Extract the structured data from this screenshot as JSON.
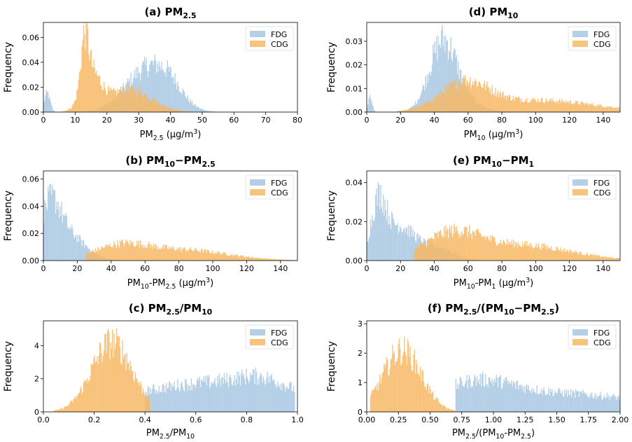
{
  "colors": {
    "FDG": "#a7c7e2",
    "CDG": "#f7b864",
    "axis": "#000000"
  },
  "chart_data": [
    {
      "panel": "a",
      "type": "histogram",
      "title": "(a) PM",
      "title_sub": "2.5",
      "xlabel": "PM",
      "xlabel_sub": "2.5",
      "xlabel_unit": " (μg/m",
      "xlabel_sup": "3",
      "xlabel_end": ")",
      "ylabel": "Frequency",
      "xlim": [
        0,
        80
      ],
      "ylim": [
        0,
        0.072
      ],
      "xticks": [
        "0",
        "10",
        "20",
        "30",
        "40",
        "50",
        "60",
        "70",
        "80"
      ],
      "xtick_values": [
        0,
        10,
        20,
        30,
        40,
        50,
        60,
        70,
        80
      ],
      "yticks": [
        "0.00",
        "0.02",
        "0.04",
        "0.06"
      ],
      "ytick_values": [
        0,
        0.02,
        0.04,
        0.06
      ],
      "legend": [
        "FDG",
        "CDG"
      ],
      "legend_position": "top-right",
      "series": [
        {
          "name": "FDG",
          "components": [
            {
              "mu": 33,
              "sigma": 7,
              "peak": 0.035
            },
            {
              "mu": 40,
              "sigma": 4,
              "peak": 0.01
            },
            {
              "mu": 1.2,
              "sigma": 0.9,
              "peak": 0.015
            }
          ],
          "range": [
            0,
            70
          ]
        },
        {
          "name": "CDG",
          "components": [
            {
              "mu": 13,
              "sigma": 1.2,
              "peak": 0.04
            },
            {
              "mu": 15,
              "sigma": 3,
              "peak": 0.028
            },
            {
              "mu": 27,
              "sigma": 7,
              "peak": 0.018
            }
          ],
          "range": [
            6,
            50
          ]
        }
      ]
    },
    {
      "panel": "d",
      "type": "histogram",
      "title": "(d) PM",
      "title_sub": "10",
      "xlabel": "PM",
      "xlabel_sub": "10",
      "xlabel_unit": " (μg/m",
      "xlabel_sup": "3",
      "xlabel_end": ")",
      "ylabel": "Frequency",
      "xlim": [
        0,
        150
      ],
      "ylim": [
        0,
        0.038
      ],
      "xticks": [
        "0",
        "20",
        "40",
        "60",
        "80",
        "100",
        "120",
        "140"
      ],
      "xtick_values": [
        0,
        20,
        40,
        60,
        80,
        100,
        120,
        140
      ],
      "yticks": [
        "0.00",
        "0.01",
        "0.02",
        "0.03"
      ],
      "ytick_values": [
        0,
        0.01,
        0.02,
        0.03
      ],
      "legend": [
        "FDG",
        "CDG"
      ],
      "legend_position": "top-right",
      "series": [
        {
          "name": "FDG",
          "components": [
            {
              "mu": 45,
              "sigma": 8,
              "peak": 0.029
            },
            {
              "mu": 58,
              "sigma": 10,
              "peak": 0.004
            },
            {
              "mu": 2,
              "sigma": 1.2,
              "peak": 0.006
            }
          ],
          "range": [
            0,
            100
          ]
        },
        {
          "name": "CDG",
          "components": [
            {
              "mu": 58,
              "sigma": 14,
              "peak": 0.011
            },
            {
              "mu": 100,
              "sigma": 35,
              "peak": 0.005
            }
          ],
          "range": [
            18,
            150
          ]
        }
      ]
    },
    {
      "panel": "b",
      "type": "histogram",
      "title": "(b) PM",
      "title_sub": "10",
      "title_mid": "−PM",
      "title_sub2": "2.5",
      "xlabel": "PM",
      "xlabel_sub": "10",
      "xlabel_mid": "-PM",
      "xlabel_sub2": "2.5",
      "xlabel_unit": " (μg/m",
      "xlabel_sup": "3",
      "xlabel_end": ")",
      "ylabel": "Frequency",
      "xlim": [
        0,
        150
      ],
      "ylim": [
        0,
        0.066
      ],
      "xticks": [
        "0",
        "20",
        "40",
        "60",
        "80",
        "100",
        "120",
        "140"
      ],
      "xtick_values": [
        0,
        20,
        40,
        60,
        80,
        100,
        120,
        140
      ],
      "yticks": [
        "0.00",
        "0.02",
        "0.04",
        "0.06"
      ],
      "ytick_values": [
        0,
        0.02,
        0.04,
        0.06
      ],
      "legend": [
        "FDG",
        "CDG"
      ],
      "legend_position": "top-right",
      "series": [
        {
          "name": "FDG",
          "components": [
            {
              "mu": 4,
              "sigma": 6,
              "peak": 0.036
            },
            {
              "mu": 15,
              "sigma": 10,
              "peak": 0.018
            }
          ],
          "range": [
            0,
            45
          ]
        },
        {
          "name": "CDG",
          "components": [
            {
              "mu": 45,
              "sigma": 15,
              "peak": 0.009
            },
            {
              "mu": 80,
              "sigma": 28,
              "peak": 0.008
            }
          ],
          "range": [
            25,
            150
          ]
        }
      ]
    },
    {
      "panel": "e",
      "type": "histogram",
      "title": "(e) PM",
      "title_sub": "10",
      "title_mid": "−PM",
      "title_sub2": "1",
      "xlabel": "PM",
      "xlabel_sub": "10",
      "xlabel_mid": "-PM",
      "xlabel_sub2": "1",
      "xlabel_unit": " (μg/m",
      "xlabel_sup": "3",
      "xlabel_end": ")",
      "ylabel": "Frequency",
      "xlim": [
        0,
        150
      ],
      "ylim": [
        0,
        0.046
      ],
      "xticks": [
        "0",
        "20",
        "40",
        "60",
        "80",
        "100",
        "120",
        "140"
      ],
      "xtick_values": [
        0,
        20,
        40,
        60,
        80,
        100,
        120,
        140
      ],
      "yticks": [
        "0.00",
        "0.02",
        "0.04"
      ],
      "ytick_values": [
        0,
        0.02,
        0.04
      ],
      "legend": [
        "FDG",
        "CDG"
      ],
      "legend_position": "top-right",
      "series": [
        {
          "name": "FDG",
          "components": [
            {
              "mu": 7,
              "sigma": 4,
              "peak": 0.022
            },
            {
              "mu": 18,
              "sigma": 12,
              "peak": 0.018
            },
            {
              "mu": 45,
              "sigma": 8,
              "peak": 0.005
            }
          ],
          "range": [
            0,
            70
          ]
        },
        {
          "name": "CDG",
          "components": [
            {
              "mu": 50,
              "sigma": 16,
              "peak": 0.012
            },
            {
              "mu": 90,
              "sigma": 30,
              "peak": 0.008
            }
          ],
          "range": [
            28,
            150
          ]
        }
      ]
    },
    {
      "panel": "c",
      "type": "histogram",
      "title": "(c) PM",
      "title_sub": "2.5",
      "title_mid": "/PM",
      "title_sub2": "10",
      "xlabel": "PM",
      "xlabel_sub": "2.5",
      "xlabel_mid": "/PM",
      "xlabel_sub2": "10",
      "ylabel": "Frequency",
      "xlim": [
        0,
        1
      ],
      "ylim": [
        0,
        5.5
      ],
      "xticks": [
        "0.0",
        "0.2",
        "0.4",
        "0.6",
        "0.8",
        "1.0"
      ],
      "xtick_values": [
        0,
        0.2,
        0.4,
        0.6,
        0.8,
        1.0
      ],
      "yticks": [
        "0",
        "2",
        "4"
      ],
      "ytick_values": [
        0,
        2,
        4
      ],
      "legend": [
        "FDG",
        "CDG"
      ],
      "legend_position": "top-right",
      "series": [
        {
          "name": "FDG",
          "components": [
            {
              "mu": 0.7,
              "sigma": 0.35,
              "peak": 1.8
            },
            {
              "mu": 0.85,
              "sigma": 0.08,
              "peak": 0.5
            }
          ],
          "range": [
            0.4,
            0.99
          ]
        },
        {
          "name": "CDG",
          "components": [
            {
              "mu": 0.27,
              "sigma": 0.08,
              "peak": 4.2
            }
          ],
          "range": [
            0.04,
            0.42
          ]
        }
      ]
    },
    {
      "panel": "f",
      "type": "histogram",
      "title": "(f) PM",
      "title_sub": "2.5",
      "title_mid": "/(PM",
      "title_sub2": "10",
      "title_mid2": "−PM",
      "title_sub3": "2.5",
      "title_end": ")",
      "xlabel": "PM",
      "xlabel_sub": "2.5",
      "xlabel_mid": "/(PM",
      "xlabel_sub2": "10",
      "xlabel_mid2": "-PM",
      "xlabel_sub3": "2.5",
      "xlabel_end": ")",
      "ylabel": "Frequency",
      "xlim": [
        0,
        2
      ],
      "ylim": [
        0,
        3.1
      ],
      "xticks": [
        "0.00",
        "0.25",
        "0.50",
        "0.75",
        "1.00",
        "1.25",
        "1.50",
        "1.75",
        "2.00"
      ],
      "xtick_values": [
        0,
        0.25,
        0.5,
        0.75,
        1,
        1.25,
        1.5,
        1.75,
        2
      ],
      "yticks": [
        "0",
        "1",
        "2",
        "3"
      ],
      "ytick_values": [
        0,
        1,
        2,
        3
      ],
      "legend": [
        "FDG",
        "CDG"
      ],
      "legend_position": "top-right",
      "series": [
        {
          "name": "FDG",
          "components": [
            {
              "mu": 0.85,
              "sigma": 0.3,
              "peak": 0.8
            },
            {
              "mu": 1.6,
              "sigma": 0.6,
              "peak": 0.6
            }
          ],
          "range": [
            0.7,
            2.0
          ]
        },
        {
          "name": "CDG",
          "components": [
            {
              "mu": 0.28,
              "sigma": 0.15,
              "peak": 2.1
            }
          ],
          "range": [
            0.03,
            0.7
          ]
        }
      ]
    }
  ]
}
